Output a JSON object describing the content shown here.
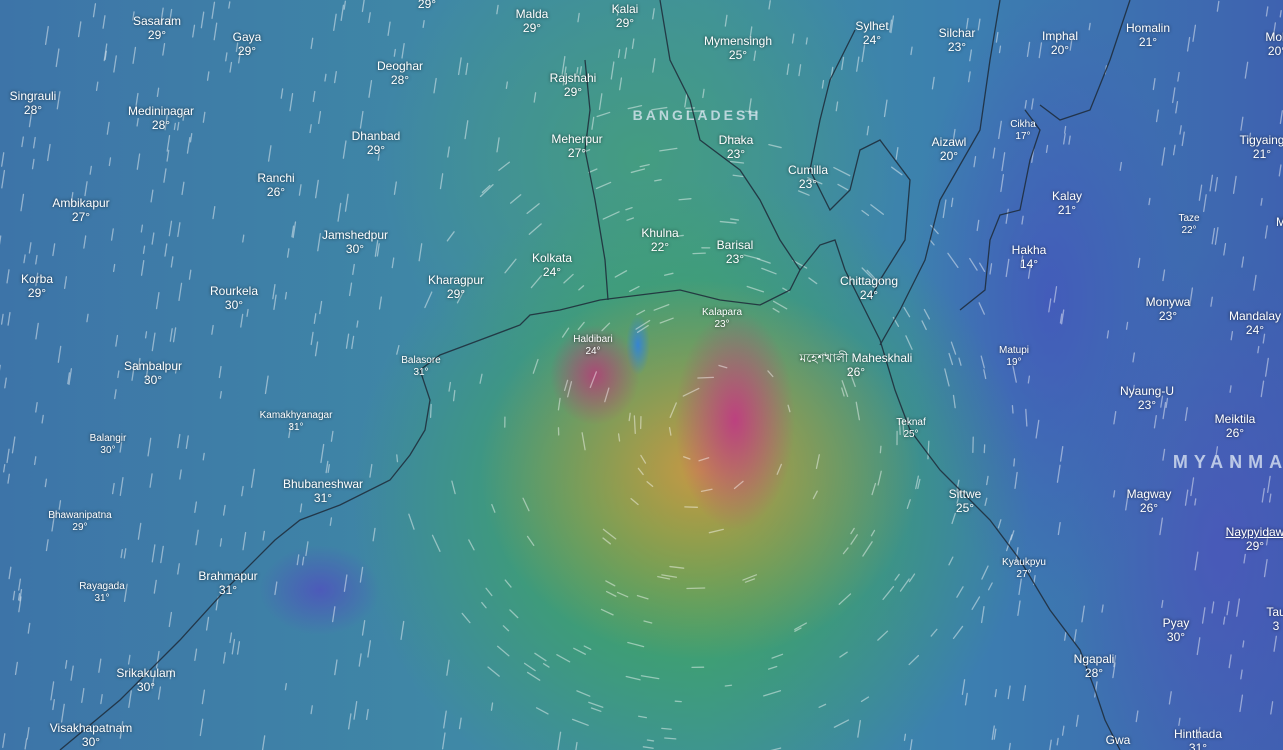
{
  "map": {
    "layer": "wind / temperature",
    "colors": {
      "calm": "#3d74a8",
      "moderate": "#3caf46",
      "strong": "#cd9646",
      "extreme": "#be3c82"
    },
    "countries": [
      "BANGLADESH",
      "MYANMAR"
    ],
    "labels": [
      {
        "name": "",
        "temp": "29°"
      },
      {
        "name": "Sasaram",
        "temp": "29°"
      },
      {
        "name": "Gaya",
        "temp": "29°"
      },
      {
        "name": "Deoghar",
        "temp": "28°"
      },
      {
        "name": "Singrauli",
        "temp": "28°"
      },
      {
        "name": "Medininagar",
        "temp": "28°"
      },
      {
        "name": "Dhanbad",
        "temp": "29°"
      },
      {
        "name": "Ranchi",
        "temp": "26°"
      },
      {
        "name": "Ambikapur",
        "temp": "27°"
      },
      {
        "name": "Jamshedpur",
        "temp": "30°"
      },
      {
        "name": "Korba",
        "temp": "29°"
      },
      {
        "name": "Rourkela",
        "temp": "30°"
      },
      {
        "name": "Kharagpur",
        "temp": "29°"
      },
      {
        "name": "Kolkata",
        "temp": "24°"
      },
      {
        "name": "Malda",
        "temp": "29°"
      },
      {
        "name": "Kalai",
        "temp": "29°"
      },
      {
        "name": "Rajshahi",
        "temp": "29°"
      },
      {
        "name": "Meherpur",
        "temp": "27°"
      },
      {
        "name": "Mymensingh",
        "temp": "25°"
      },
      {
        "name": "Sylhet",
        "temp": "24°"
      },
      {
        "name": "Silchar",
        "temp": "23°"
      },
      {
        "name": "Imphal",
        "temp": "20°"
      },
      {
        "name": "Homalin",
        "temp": "21°"
      },
      {
        "name": "Moh",
        "temp": "20°"
      },
      {
        "name": "Dhaka",
        "temp": "23°"
      },
      {
        "name": "Cumilla",
        "temp": "23°"
      },
      {
        "name": "Aizawl",
        "temp": "20°"
      },
      {
        "name": "Cikha",
        "temp": "17°"
      },
      {
        "name": "Tigyaing",
        "temp": "21°"
      },
      {
        "name": "Khulna",
        "temp": "22°"
      },
      {
        "name": "Barisal",
        "temp": "23°"
      },
      {
        "name": "Chittagong",
        "temp": "24°"
      },
      {
        "name": "Kalay",
        "temp": "21°"
      },
      {
        "name": "Taze",
        "temp": "22°"
      },
      {
        "name": "Hakha",
        "temp": "14°"
      },
      {
        "name": "Monywa",
        "temp": "23°"
      },
      {
        "name": "Mandalay",
        "temp": "24°"
      },
      {
        "name": "Kalapara",
        "temp": "23°"
      },
      {
        "name": "Haldibari",
        "temp": "24°"
      },
      {
        "name": "Balasore",
        "temp": "31°"
      },
      {
        "name": "মহেশখালী Maheskhali",
        "temp": "26°"
      },
      {
        "name": "Matupi",
        "temp": "19°"
      },
      {
        "name": "Sambalpur",
        "temp": "30°"
      },
      {
        "name": "Nyaung-U",
        "temp": "23°"
      },
      {
        "name": "Meiktila",
        "temp": "26°"
      },
      {
        "name": "Kamakhyanagar",
        "temp": "31°"
      },
      {
        "name": "Teknaf",
        "temp": "25°"
      },
      {
        "name": "Balangir",
        "temp": "30°"
      },
      {
        "name": "Bhubaneshwar",
        "temp": "31°"
      },
      {
        "name": "Sittwe",
        "temp": "25°"
      },
      {
        "name": "Magway",
        "temp": "26°"
      },
      {
        "name": "Bhawanipatna",
        "temp": "29°"
      },
      {
        "name": "Naypyidaw",
        "temp": "29°"
      },
      {
        "name": "Kyaukpyu",
        "temp": "27°"
      },
      {
        "name": "Brahmapur",
        "temp": "31°"
      },
      {
        "name": "Rayagada",
        "temp": "31°"
      },
      {
        "name": "Tau",
        "temp": "3"
      },
      {
        "name": "Pyay",
        "temp": "30°"
      },
      {
        "name": "Ngapali",
        "temp": "28°"
      },
      {
        "name": "Srikakulam",
        "temp": "30°"
      },
      {
        "name": "Visakhapatnam",
        "temp": "30°"
      },
      {
        "name": "Gwa",
        "temp": ""
      },
      {
        "name": "Hinthada",
        "temp": "31°"
      },
      {
        "name": "M",
        "temp": ""
      }
    ]
  }
}
